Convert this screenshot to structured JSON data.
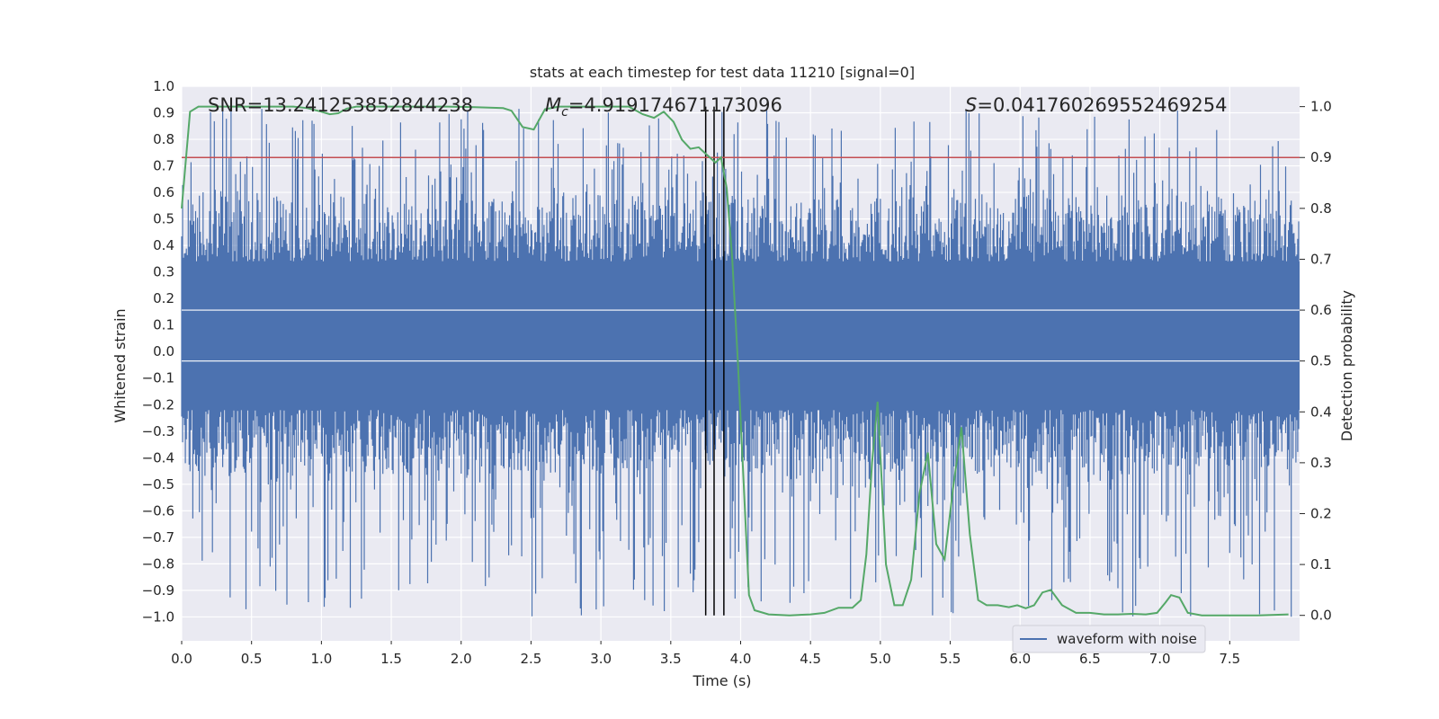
{
  "chart_data": {
    "type": "line",
    "title": "stats at each timestep for test data 11210 [signal=0]",
    "xlabel": "Time (s)",
    "ylabel_left": "Whitened strain",
    "ylabel_right": "Detection probability",
    "xlim": [
      0.0,
      8.0
    ],
    "ylim_left": [
      -1.09,
      1.0
    ],
    "ylim_right": [
      -0.05,
      1.04
    ],
    "x_ticks": [
      0.0,
      0.5,
      1.0,
      1.5,
      2.0,
      2.5,
      3.0,
      3.5,
      4.0,
      4.5,
      5.0,
      5.5,
      6.0,
      6.5,
      7.0,
      7.5
    ],
    "x_tick_labels": [
      "0.0",
      "0.5",
      "1.0",
      "1.5",
      "2.0",
      "2.5",
      "3.0",
      "3.5",
      "4.0",
      "4.5",
      "5.0",
      "5.5",
      "6.0",
      "6.5",
      "7.0",
      "7.5"
    ],
    "y_left_ticks": [
      1.0,
      0.9,
      0.8,
      0.7,
      0.6,
      0.5,
      0.4,
      0.3,
      0.2,
      0.1,
      0.0,
      -0.1,
      -0.2,
      -0.3,
      -0.4,
      -0.5,
      -0.6,
      -0.7,
      -0.8,
      -0.9,
      -1.0
    ],
    "y_left_tick_labels": [
      "1.0",
      "0.9",
      "0.8",
      "0.7",
      "0.6",
      "0.5",
      "0.4",
      "0.3",
      "0.2",
      "0.1",
      "0.0",
      "−0.1",
      "−0.2",
      "−0.3",
      "−0.4",
      "−0.5",
      "−0.6",
      "−0.7",
      "−0.8",
      "−0.9",
      "−1.0"
    ],
    "y_right_ticks": [
      1.0,
      0.9,
      0.8,
      0.7,
      0.6,
      0.5,
      0.4,
      0.3,
      0.2,
      0.1,
      0.0
    ],
    "y_right_tick_labels": [
      "1.0",
      "0.9",
      "0.8",
      "0.7",
      "0.6",
      "0.5",
      "0.4",
      "0.3",
      "0.2",
      "0.1",
      "0.0"
    ],
    "grid": true,
    "annotations": {
      "snr": "SNR=13.241253852844238",
      "mc_symbol": "M",
      "mc_sub": "c",
      "mc_value": "=4.919174671173096",
      "s_symbol": "S",
      "s_value": "=0.041760269552469254"
    },
    "threshold_line": {
      "y_right": 0.9,
      "color": "#c44e52"
    },
    "vertical_lines": [
      3.75,
      3.81,
      3.88
    ],
    "strain": {
      "name": "waveform with noise",
      "color": "#4c72b0",
      "duration_s": 8.0,
      "sample_count": 600,
      "band_lower": -0.22,
      "band_upper": 0.34,
      "max_peak": 0.92,
      "min_trough": -1.0
    },
    "probability": {
      "color": "#55a868",
      "x": [
        0.0,
        0.06,
        0.12,
        0.2,
        0.3,
        0.4,
        0.5,
        0.6,
        0.7,
        0.8,
        0.9,
        1.0,
        1.06,
        1.12,
        1.18,
        1.25,
        1.35,
        1.5,
        1.7,
        1.9,
        2.1,
        2.3,
        2.36,
        2.44,
        2.52,
        2.6,
        2.7,
        2.8,
        2.9,
        3.0,
        3.1,
        3.2,
        3.3,
        3.38,
        3.45,
        3.52,
        3.58,
        3.64,
        3.7,
        3.74,
        3.78,
        3.82,
        3.86,
        3.9,
        3.94,
        3.98,
        4.02,
        4.06,
        4.1,
        4.2,
        4.35,
        4.5,
        4.6,
        4.7,
        4.8,
        4.86,
        4.9,
        4.94,
        4.98,
        5.04,
        5.1,
        5.16,
        5.22,
        5.28,
        5.34,
        5.4,
        5.46,
        5.52,
        5.58,
        5.64,
        5.7,
        5.76,
        5.84,
        5.92,
        5.98,
        6.04,
        6.1,
        6.16,
        6.22,
        6.3,
        6.4,
        6.5,
        6.6,
        6.7,
        6.8,
        6.9,
        6.98,
        7.04,
        7.08,
        7.14,
        7.2,
        7.3,
        7.5,
        7.7,
        7.92
      ],
      "y": [
        0.8,
        0.99,
        1.0,
        1.0,
        1.0,
        1.0,
        1.0,
        1.0,
        1.0,
        1.0,
        0.997,
        0.99,
        0.985,
        0.987,
        0.996,
        1.0,
        1.0,
        1.0,
        1.0,
        1.0,
        0.999,
        0.997,
        0.992,
        0.96,
        0.955,
        0.995,
        1.0,
        1.0,
        1.0,
        1.0,
        1.0,
        1.0,
        0.985,
        0.978,
        0.99,
        0.97,
        0.935,
        0.917,
        0.92,
        0.91,
        0.9,
        0.89,
        0.9,
        0.84,
        0.7,
        0.5,
        0.27,
        0.04,
        0.01,
        0.002,
        0.0,
        0.002,
        0.005,
        0.015,
        0.015,
        0.03,
        0.12,
        0.3,
        0.42,
        0.1,
        0.02,
        0.02,
        0.07,
        0.24,
        0.32,
        0.14,
        0.11,
        0.25,
        0.37,
        0.16,
        0.03,
        0.02,
        0.02,
        0.016,
        0.02,
        0.014,
        0.02,
        0.045,
        0.05,
        0.02,
        0.005,
        0.005,
        0.002,
        0.002,
        0.003,
        0.002,
        0.005,
        0.025,
        0.04,
        0.035,
        0.005,
        0.0,
        0.0,
        0.0,
        0.002
      ]
    },
    "legend": {
      "label": "waveform with noise",
      "placement": "lower-right"
    }
  }
}
